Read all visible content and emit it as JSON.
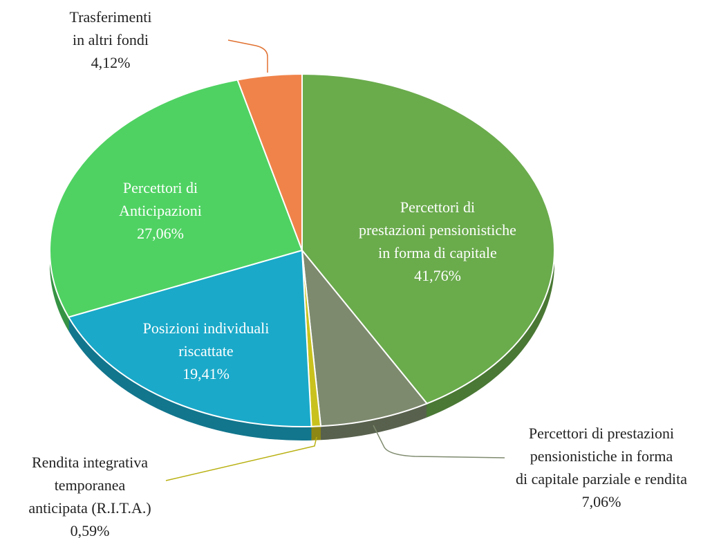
{
  "chart_data": {
    "type": "pie",
    "categories": [
      "Percettori di\nprestazioni pensionistiche\nin forma di capitale",
      "Percettori di prestazioni\npensionistiche in forma\ndi capitale parziale e rendita",
      "Rendita integrativa\ntemporanea\nanticipata (R.I.T.A.)",
      "Posizioni individuali\nriscattate",
      "Percettori di\nAnticipazioni",
      "Trasferimenti\nin altri fondi"
    ],
    "values": [
      41.76,
      7.06,
      0.59,
      19.41,
      27.06,
      4.12
    ],
    "value_labels": [
      "41,76%",
      "7,06%",
      "0,59%",
      "19,41%",
      "27,06%",
      "4,12%"
    ],
    "colors": [
      "#6aab4c",
      "#7e8a6e",
      "#c9c21e",
      "#1aa9c9",
      "#4fd262",
      "#f0834a"
    ]
  }
}
